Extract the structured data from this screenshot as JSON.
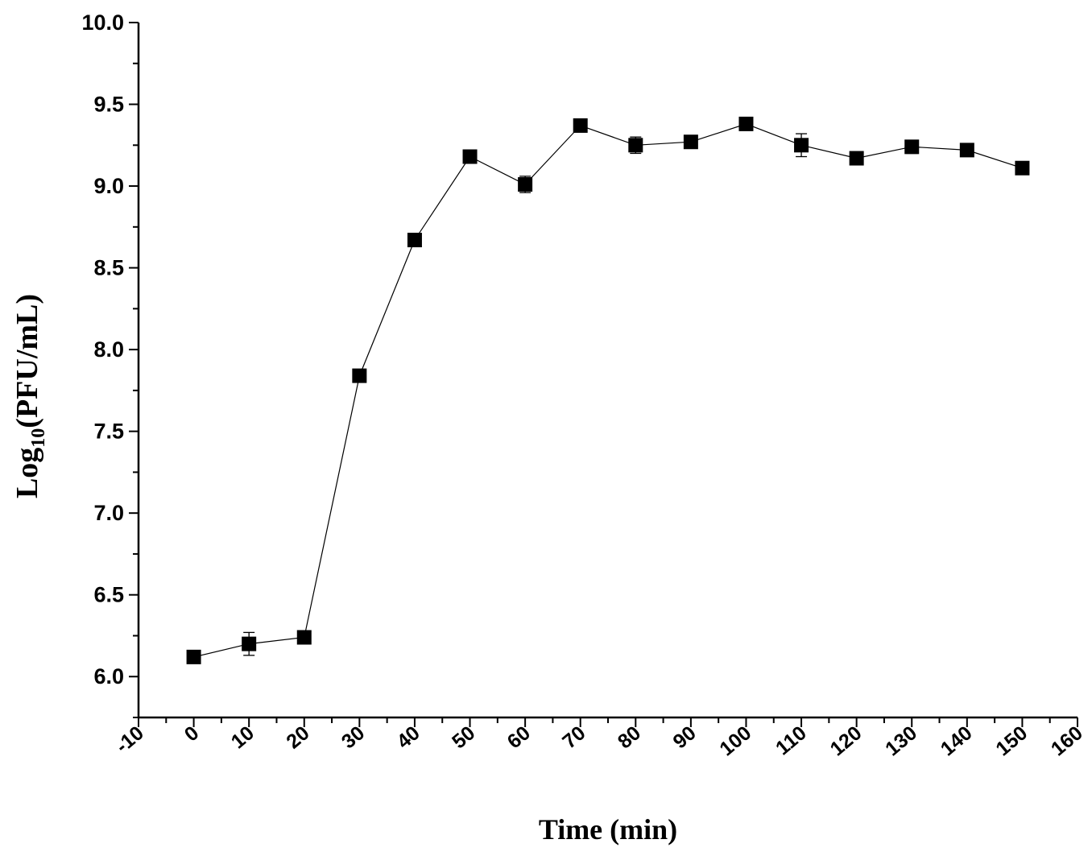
{
  "chart_data": {
    "type": "line",
    "title": "",
    "xlabel": "Time (min)",
    "ylabel": {
      "prefix": "Log",
      "subscript": "10",
      "suffix": "(PFU/mL)"
    },
    "xlim": [
      -10,
      160
    ],
    "ylim": [
      5.75,
      10.0
    ],
    "x_ticks": [
      "-10",
      "0",
      "10",
      "20",
      "30",
      "40",
      "50",
      "60",
      "70",
      "80",
      "90",
      "100",
      "110",
      "120",
      "130",
      "140",
      "150",
      "160"
    ],
    "y_ticks": [
      "6.0",
      "6.5",
      "7.0",
      "7.5",
      "8.0",
      "8.5",
      "9.0",
      "9.5",
      "10.0"
    ],
    "grid": false,
    "marker": "filled-square",
    "series": [
      {
        "x": [
          0,
          10,
          20,
          30,
          40,
          50,
          60,
          70,
          80,
          90,
          100,
          110,
          120,
          130,
          140,
          150
        ],
        "y": [
          6.12,
          6.2,
          6.24,
          7.84,
          8.67,
          9.18,
          9.01,
          9.37,
          9.25,
          9.27,
          9.38,
          9.25,
          9.17,
          9.24,
          9.22,
          9.11
        ],
        "error": [
          0.0,
          0.07,
          0.0,
          0.0,
          0.0,
          0.0,
          0.05,
          0.0,
          0.05,
          0.0,
          0.0,
          0.07,
          0.0,
          0.04,
          0.0,
          0.0
        ]
      }
    ]
  }
}
